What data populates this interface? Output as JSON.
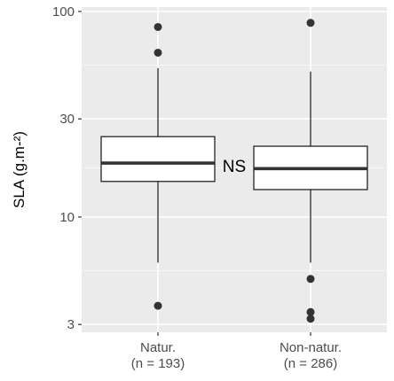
{
  "chart_data": {
    "type": "boxplot",
    "title": "",
    "xlabel": "",
    "ylabel": "SLA (g.m-²)",
    "y_scale": "log",
    "ylim": [
      2.75,
      105
    ],
    "y_ticks": [
      3,
      10,
      30,
      100
    ],
    "y_tick_labels": [
      "3",
      "10",
      "30",
      "100"
    ],
    "grid": true,
    "panel_background": "#ebebeb",
    "categories": [
      "Natur.",
      "Non-natur."
    ],
    "category_labels": [
      {
        "line1": "Natur.",
        "line2": "(n = 193)"
      },
      {
        "line1": "Non-natur.",
        "line2": "(n = 286)"
      }
    ],
    "boxes": [
      {
        "category": "Natur.",
        "n": 193,
        "whisker_low": 6.0,
        "q1": 14.9,
        "median": 18.3,
        "q3": 24.6,
        "whisker_high": 53,
        "outliers": [
          3.7,
          63,
          84
        ]
      },
      {
        "category": "Non-natur.",
        "n": 286,
        "whisker_low": 6.0,
        "q1": 13.6,
        "median": 17.2,
        "q3": 22.1,
        "whisker_high": 51,
        "outliers": [
          5.0,
          3.45,
          3.2,
          88
        ]
      }
    ],
    "annotations": [
      {
        "text": "NS"
      }
    ]
  }
}
